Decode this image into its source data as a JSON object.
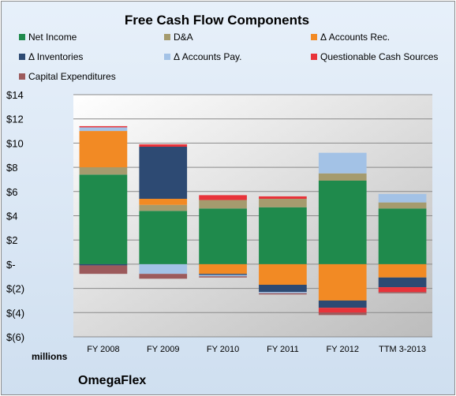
{
  "chart_data": {
    "type": "bar",
    "stacked": true,
    "title": "Free Cash Flow Components",
    "xlabel": "",
    "ylabel": "",
    "units_label": "millions",
    "categories": [
      "FY 2008",
      "FY 2009",
      "FY 2010",
      "FY 2011",
      "FY 2012",
      "TTM 3-2013"
    ],
    "ylim": [
      -6,
      14
    ],
    "yticks": [
      -6,
      -4,
      -2,
      0,
      2,
      4,
      6,
      8,
      10,
      12,
      14
    ],
    "ytick_labels": [
      "$(6)",
      "$(4)",
      "$(2)",
      "$-",
      "$2",
      "$4",
      "$6",
      "$8",
      "$10",
      "$12",
      "$14"
    ],
    "grid": true,
    "legend_position": "top",
    "series": [
      {
        "name": "Net Income",
        "color": "#1f8a4c",
        "values": [
          7.4,
          4.4,
          4.6,
          4.7,
          6.9,
          4.6
        ]
      },
      {
        "name": "D&A",
        "color": "#a59b6e",
        "values": [
          0.6,
          0.5,
          0.7,
          0.7,
          0.6,
          0.5
        ]
      },
      {
        "name": "Δ Accounts Rec.",
        "color": "#f28a24",
        "values": [
          3.0,
          0.5,
          -0.8,
          -1.7,
          -3.0,
          -1.1
        ]
      },
      {
        "name": "Δ Inventories",
        "color": "#2d4a73",
        "values": [
          -0.1,
          4.3,
          -0.1,
          -0.6,
          -0.6,
          -0.8
        ]
      },
      {
        "name": "Δ Accounts Pay.",
        "color": "#a3c2e6",
        "values": [
          0.3,
          -0.8,
          -0.1,
          -0.1,
          1.7,
          0.7
        ]
      },
      {
        "name": "Questionable Cash Sources",
        "color": "#e8333a",
        "values": [
          0.1,
          0.2,
          0.4,
          0.2,
          -0.4,
          -0.4
        ]
      },
      {
        "name": "Capital Expenditures",
        "color": "#9c5a5c",
        "values": [
          -0.7,
          -0.4,
          -0.1,
          -0.1,
          -0.2,
          -0.1
        ]
      }
    ]
  },
  "footer": {
    "company": "OmegaFlex"
  }
}
